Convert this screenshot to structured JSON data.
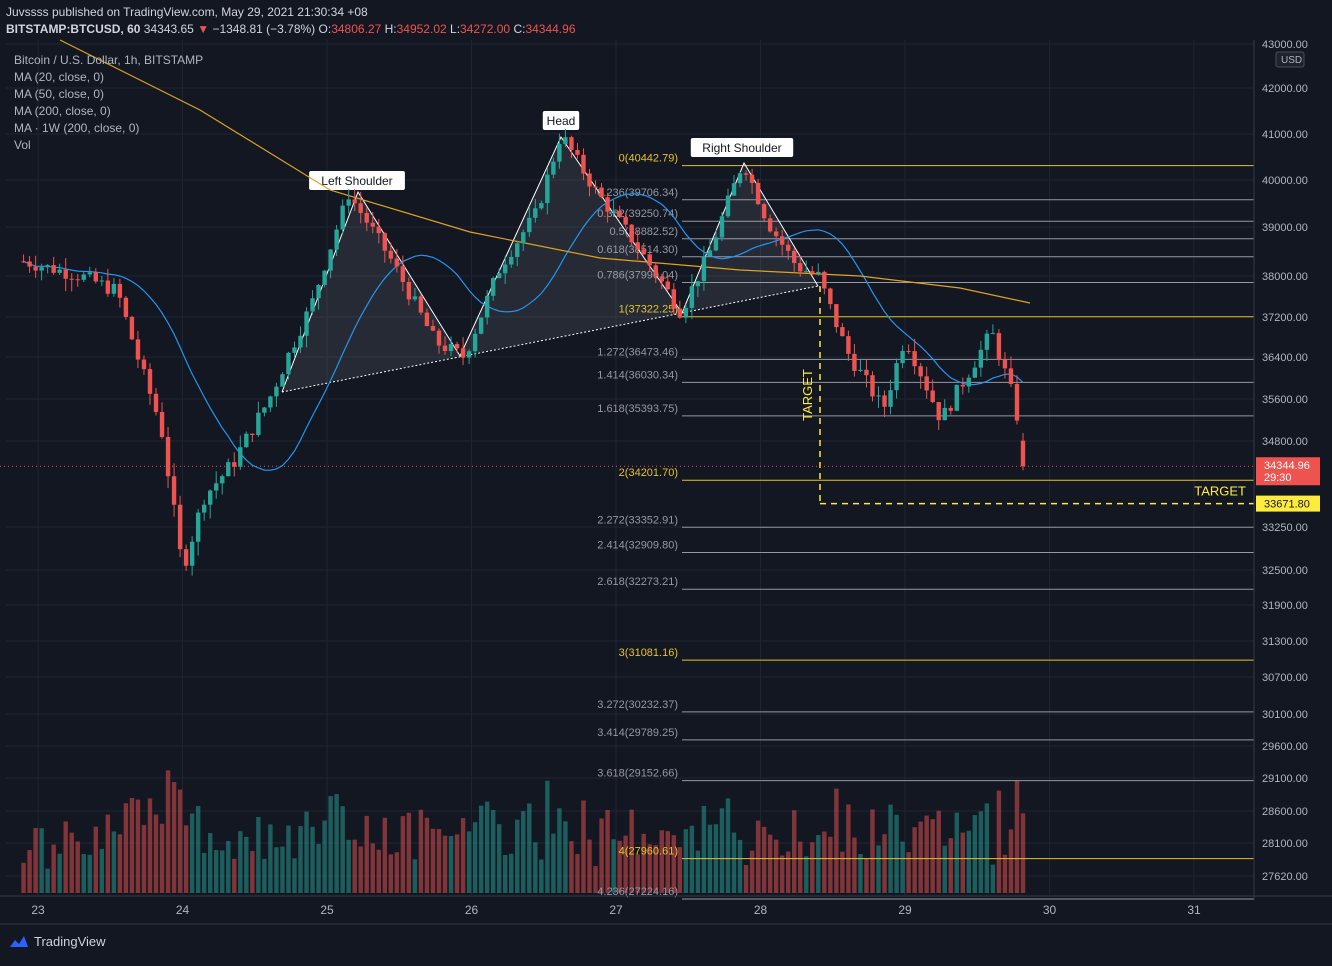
{
  "header": {
    "published": "Juvssss published on TradingView.com, May 29, 2021 21:30:34 +08",
    "symbol": "BITSTAMP:BTCUSD, 60",
    "last": "34343.65",
    "change": "−1348.81 (−3.78%)",
    "o_label": "O:",
    "o": "34806.27",
    "h_label": "H:",
    "h": "34952.02",
    "l_label": "L:",
    "l": "34272.00",
    "c_label": "C:",
    "c": "34344.96"
  },
  "legend": [
    "Bitcoin / U.S. Dollar, 1h, BITSTAMP",
    "MA (20, close, 0)",
    "MA (50, close, 0)",
    "MA (200, close, 0)",
    "MA · 1W (200, close, 0)",
    "Vol"
  ],
  "footer": {
    "brand": "TradingView"
  },
  "chart_data": {
    "type": "candlestick",
    "currency": "USD",
    "y_ticks": [
      "43000.00",
      "42000.00",
      "41000.00",
      "40000.00",
      "39000.00",
      "38000.00",
      "37200.00",
      "36400.00",
      "35600.00",
      "34800.00",
      "33250.00",
      "32500.00",
      "31900.00",
      "31300.00",
      "30700.00",
      "30100.00",
      "29600.00",
      "29100.00",
      "28600.00",
      "28100.00",
      "27620.00"
    ],
    "x_ticks": [
      "23",
      "24",
      "25",
      "26",
      "27",
      "28",
      "29",
      "30",
      "31"
    ],
    "price_labels": {
      "last": "34344.96",
      "countdown": "29:30",
      "target": "33671.80"
    },
    "pattern_labels": [
      "Left Shoulder",
      "Head",
      "Right Shoulder"
    ],
    "target_label": "TARGET",
    "fib_levels": [
      {
        "label": "0(40442.79)",
        "value": 40442.79,
        "color": "#e6c229"
      },
      {
        "label": "0.236(39706.34)",
        "value": 39706.34,
        "color": "#9598a1"
      },
      {
        "label": "0.382(39250.74)",
        "value": 39250.74,
        "color": "#9598a1"
      },
      {
        "label": "0.5(38882.52)",
        "value": 38882.52,
        "color": "#9598a1"
      },
      {
        "label": "0.618(38514.30)",
        "value": 38514.3,
        "color": "#9598a1"
      },
      {
        "label": "0.786(37990.04)",
        "value": 37990.04,
        "color": "#9598a1"
      },
      {
        "label": "1(37322.25)",
        "value": 37322.25,
        "color": "#e6c229"
      },
      {
        "label": "1.272(36473.46)",
        "value": 36473.46,
        "color": "#9598a1"
      },
      {
        "label": "1.414(36030.34)",
        "value": 36030.34,
        "color": "#9598a1"
      },
      {
        "label": "1.618(35393.75)",
        "value": 35393.75,
        "color": "#9598a1"
      },
      {
        "label": "2(34201.70)",
        "value": 34201.7,
        "color": "#e6c229"
      },
      {
        "label": "2.272(33352.91)",
        "value": 33352.91,
        "color": "#9598a1"
      },
      {
        "label": "2.414(32909.80)",
        "value": 32909.8,
        "color": "#9598a1"
      },
      {
        "label": "2.618(32273.21)",
        "value": 32273.21,
        "color": "#9598a1"
      },
      {
        "label": "3(31081.16)",
        "value": 31081.16,
        "color": "#e6c229"
      },
      {
        "label": "3.272(30232.37)",
        "value": 30232.37,
        "color": "#9598a1"
      },
      {
        "label": "3.414(29789.25)",
        "value": 29789.25,
        "color": "#9598a1"
      },
      {
        "label": "3.618(29152.66)",
        "value": 29152.66,
        "color": "#9598a1"
      },
      {
        "label": "4(27960.61)",
        "value": 27960.61,
        "color": "#e6c229"
      },
      {
        "label": "4.236(27224.16)",
        "value": 27224.16,
        "color": "#9598a1"
      }
    ],
    "price_path_approx": [
      {
        "day": 22.9,
        "price": 38300
      },
      {
        "day": 23.3,
        "price": 38000
      },
      {
        "day": 23.55,
        "price": 37700
      },
      {
        "day": 23.7,
        "price": 36300
      },
      {
        "day": 23.85,
        "price": 35100
      },
      {
        "day": 24.0,
        "price": 32500
      },
      {
        "day": 24.15,
        "price": 33800
      },
      {
        "day": 24.35,
        "price": 34400
      },
      {
        "day": 24.6,
        "price": 35600
      },
      {
        "day": 24.9,
        "price": 37500
      },
      {
        "day": 25.15,
        "price": 39700
      },
      {
        "day": 25.45,
        "price": 38300
      },
      {
        "day": 25.75,
        "price": 36700
      },
      {
        "day": 25.95,
        "price": 36400
      },
      {
        "day": 26.2,
        "price": 38200
      },
      {
        "day": 26.45,
        "price": 39300
      },
      {
        "day": 26.62,
        "price": 41000
      },
      {
        "day": 26.85,
        "price": 39800
      },
      {
        "day": 27.1,
        "price": 38800
      },
      {
        "day": 27.45,
        "price": 37300
      },
      {
        "day": 27.65,
        "price": 38500
      },
      {
        "day": 27.88,
        "price": 40400
      },
      {
        "day": 28.05,
        "price": 39100
      },
      {
        "day": 28.25,
        "price": 38200
      },
      {
        "day": 28.4,
        "price": 38000
      },
      {
        "day": 28.6,
        "price": 36500
      },
      {
        "day": 28.85,
        "price": 35400
      },
      {
        "day": 29.0,
        "price": 36800
      },
      {
        "day": 29.25,
        "price": 35200
      },
      {
        "day": 29.5,
        "price": 36400
      },
      {
        "day": 29.6,
        "price": 36900
      },
      {
        "day": 29.75,
        "price": 35600
      },
      {
        "day": 29.85,
        "price": 34344
      }
    ],
    "colors": {
      "up": "#26a69a",
      "down": "#ef5350",
      "ma20": "#2196f3",
      "ma200": "#e0a31f",
      "fib_key": "#e6c229",
      "target": "#ffeb3b"
    }
  }
}
